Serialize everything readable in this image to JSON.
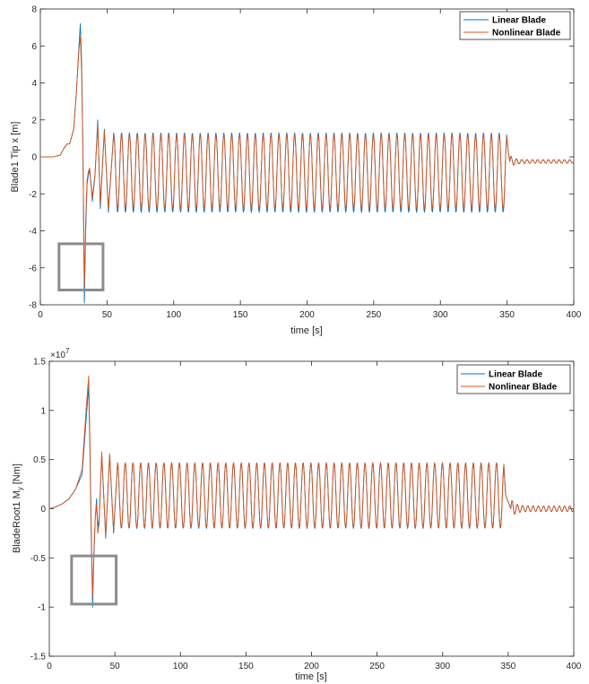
{
  "chart_data": [
    {
      "type": "line",
      "xlabel": "time [s]",
      "ylabel": "Blade1 Tip x [m]",
      "exponent_label": "",
      "xlim": [
        0,
        400
      ],
      "ylim": [
        -8,
        8
      ],
      "xticks": [
        "0",
        "50",
        "100",
        "150",
        "200",
        "250",
        "300",
        "350",
        "400"
      ],
      "yticks": [
        "8",
        "6",
        "4",
        "2",
        "0",
        "-2",
        "-4",
        "-6",
        "-8"
      ],
      "grid": false,
      "legend_position": "top-right",
      "highlight_box": {
        "x": [
          14,
          47
        ],
        "y": [
          -7.2,
          -4.7
        ]
      },
      "series": [
        {
          "name": "Linear Blade",
          "color": "#0072BD",
          "points": [
            [
              0,
              0
            ],
            [
              10,
              0
            ],
            [
              15,
              0.1
            ],
            [
              18,
              0.5
            ],
            [
              20,
              0.7
            ],
            [
              22,
              0.7
            ],
            [
              25,
              1.5
            ],
            [
              27,
              3.5
            ],
            [
              29,
              6
            ],
            [
              30,
              7.2
            ],
            [
              31,
              5
            ],
            [
              32,
              0
            ],
            [
              33,
              -7.9
            ],
            [
              34,
              -4
            ],
            [
              35,
              -1.5
            ],
            [
              36,
              -1
            ],
            [
              37,
              -0.7
            ],
            [
              38,
              -1.5
            ],
            [
              39,
              -2.4
            ],
            [
              41,
              -1
            ],
            [
              43,
              2
            ],
            [
              45,
              -2.8
            ],
            [
              48,
              1.5
            ],
            [
              51,
              -3
            ]
          ],
          "steady": {
            "start": 55,
            "end": 350,
            "period": 5.9,
            "max": 1.3,
            "min": -3.0
          },
          "tail": {
            "start": 352,
            "end": 400,
            "level": -0.25,
            "amplitude": 0.1,
            "period": 4
          }
        },
        {
          "name": "Nonlinear Blade",
          "color": "#D95319",
          "points": [
            [
              0,
              0
            ],
            [
              10,
              0
            ],
            [
              15,
              0.1
            ],
            [
              18,
              0.5
            ],
            [
              20,
              0.7
            ],
            [
              22,
              0.7
            ],
            [
              25,
              1.5
            ],
            [
              27,
              3.5
            ],
            [
              29,
              5.8
            ],
            [
              30,
              6.5
            ],
            [
              31,
              4.5
            ],
            [
              32,
              0
            ],
            [
              33,
              -7.0
            ],
            [
              34,
              -3.5
            ],
            [
              35,
              -1.3
            ],
            [
              36,
              -0.8
            ],
            [
              37,
              -0.6
            ],
            [
              38,
              -1.4
            ],
            [
              39,
              -2.2
            ],
            [
              41,
              -0.9
            ],
            [
              43,
              1.7
            ],
            [
              45,
              -2.5
            ],
            [
              48,
              1.4
            ],
            [
              51,
              -2.8
            ]
          ],
          "steady": {
            "start": 55,
            "end": 350,
            "period": 5.9,
            "max": 1.2,
            "min": -2.8
          },
          "tail": {
            "start": 352,
            "end": 400,
            "level": -0.25,
            "amplitude": 0.1,
            "period": 4
          }
        }
      ]
    },
    {
      "type": "line",
      "xlabel": "time [s]",
      "ylabel": "BladeRoot1 M",
      "ylabel_subscript": "y",
      "ylabel_unit": "[Nm]",
      "exponent_base": "×10",
      "exponent_power": "7",
      "xlim": [
        0,
        400
      ],
      "ylim": [
        -1.5,
        1.5
      ],
      "xticks": [
        "0",
        "50",
        "100",
        "150",
        "200",
        "250",
        "300",
        "350",
        "400"
      ],
      "yticks": [
        "1.5",
        "1",
        "0.5",
        "0",
        "-0.5",
        "-1",
        "-1.5"
      ],
      "grid": false,
      "legend_position": "top-right",
      "highlight_box": {
        "x": [
          17,
          51
        ],
        "y": [
          -0.97,
          -0.48
        ]
      },
      "series": [
        {
          "name": "Linear Blade",
          "color": "#0072BD",
          "points": [
            [
              0,
              0
            ],
            [
              5,
              0.02
            ],
            [
              10,
              0.05
            ],
            [
              15,
              0.1
            ],
            [
              20,
              0.2
            ],
            [
              25,
              0.35
            ],
            [
              28,
              0.9
            ],
            [
              30,
              1.25
            ],
            [
              31,
              0.6
            ],
            [
              32,
              -0.3
            ],
            [
              33,
              -1.0
            ],
            [
              34,
              -0.5
            ],
            [
              35,
              -0.1
            ],
            [
              36,
              0.1
            ],
            [
              37,
              -0.2
            ],
            [
              38,
              -0.1
            ],
            [
              40,
              0.55
            ],
            [
              43,
              -0.3
            ],
            [
              46,
              0.55
            ],
            [
              49,
              -0.25
            ]
          ],
          "steady": {
            "start": 52,
            "end": 347,
            "period": 5.9,
            "max": 0.46,
            "min": -0.2
          },
          "tail": {
            "start": 352,
            "end": 400,
            "level": 0.0,
            "amplitude": 0.03,
            "period": 4
          }
        },
        {
          "name": "Nonlinear Blade",
          "color": "#D95319",
          "points": [
            [
              0,
              0
            ],
            [
              5,
              0.02
            ],
            [
              10,
              0.05
            ],
            [
              15,
              0.1
            ],
            [
              20,
              0.2
            ],
            [
              25,
              0.4
            ],
            [
              28,
              1.0
            ],
            [
              30,
              1.35
            ],
            [
              31,
              0.7
            ],
            [
              32,
              -0.2
            ],
            [
              33,
              -0.9
            ],
            [
              34,
              -0.45
            ],
            [
              35,
              -0.1
            ],
            [
              36,
              0.05
            ],
            [
              37,
              -0.25
            ],
            [
              38,
              -0.15
            ],
            [
              40,
              0.58
            ],
            [
              43,
              -0.28
            ],
            [
              46,
              0.56
            ],
            [
              49,
              -0.22
            ]
          ],
          "steady": {
            "start": 52,
            "end": 347,
            "period": 5.9,
            "max": 0.47,
            "min": -0.19
          },
          "tail": {
            "start": 352,
            "end": 400,
            "level": 0.0,
            "amplitude": 0.03,
            "period": 4
          }
        }
      ]
    }
  ]
}
